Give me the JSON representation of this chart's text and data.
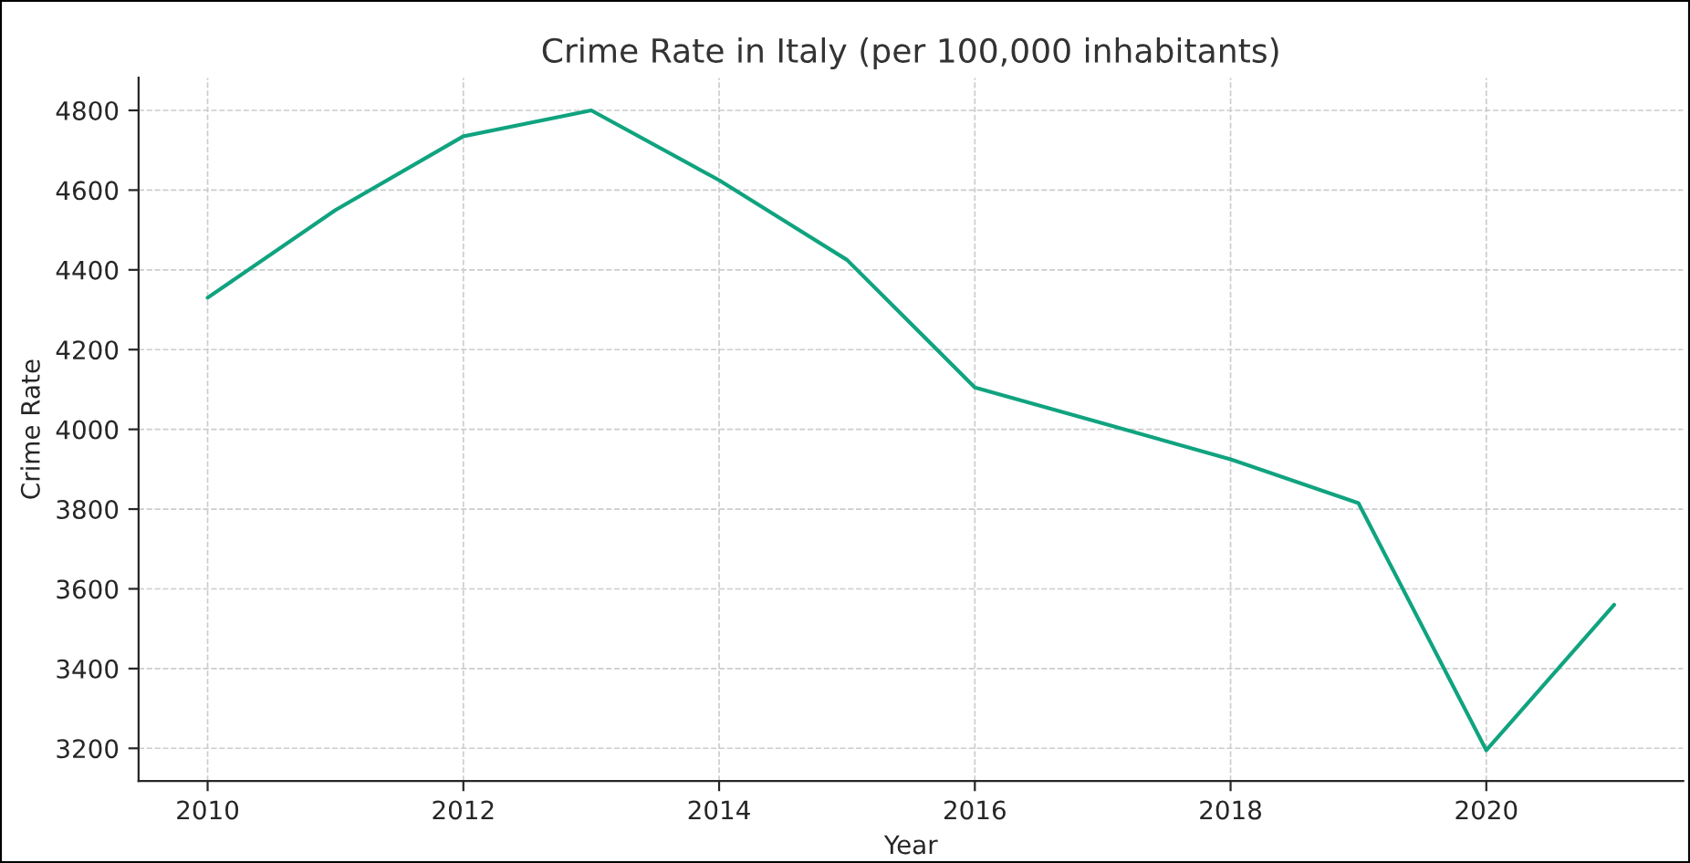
{
  "chart_data": {
    "type": "line",
    "title": "Crime Rate in Italy (per 100,000 inhabitants)",
    "xlabel": "Year",
    "ylabel": "Crime Rate",
    "x": [
      2010,
      2011,
      2012,
      2013,
      2014,
      2015,
      2016,
      2017,
      2018,
      2019,
      2020,
      2021
    ],
    "series": [
      {
        "color": "#10a37f",
        "values": [
          4330,
          4550,
          4735,
          4800,
          4625,
          4425,
          4105,
          4015,
          3925,
          3815,
          3195,
          3560
        ]
      }
    ],
    "xlim": [
      2009.46,
      2021.54
    ],
    "xticks": [
      2010,
      2012,
      2014,
      2016,
      2018,
      2020
    ],
    "ylim": [
      3118,
      4882
    ],
    "yticks": [
      3200,
      3400,
      3600,
      3800,
      4000,
      4200,
      4400,
      4600,
      4800
    ],
    "grid": true,
    "marker": "none",
    "line_style": "solid"
  }
}
